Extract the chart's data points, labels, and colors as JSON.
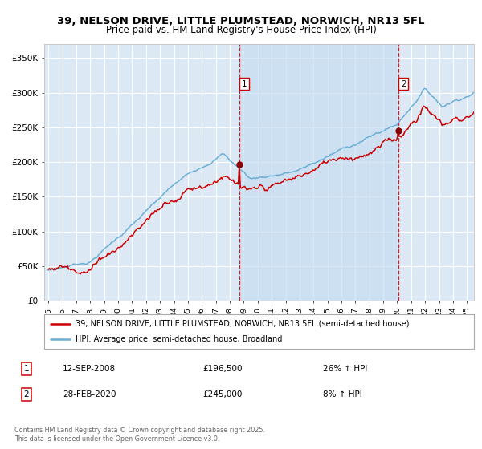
{
  "title_line1": "39, NELSON DRIVE, LITTLE PLUMSTEAD, NORWICH, NR13 5FL",
  "title_line2": "Price paid vs. HM Land Registry's House Price Index (HPI)",
  "background_color": "#ffffff",
  "plot_bg_color": "#dce9f5",
  "span_color": "#c8ddf0",
  "grid_color": "#ffffff",
  "sale1_date_label": "12-SEP-2008",
  "sale1_price_label": "£196,500",
  "sale1_price": 196500,
  "sale1_hpi_change": "26% ↑ HPI",
  "sale2_date_label": "28-FEB-2020",
  "sale2_price_label": "£245,000",
  "sale2_price": 245000,
  "sale2_hpi_change": "8% ↑ HPI",
  "legend_line1": "39, NELSON DRIVE, LITTLE PLUMSTEAD, NORWICH, NR13 5FL (semi-detached house)",
  "legend_line2": "HPI: Average price, semi-detached house, Broadland",
  "footnote": "Contains HM Land Registry data © Crown copyright and database right 2025.\nThis data is licensed under the Open Government Licence v3.0.",
  "hpi_line_color": "#6baed6",
  "price_line_color": "#cc0000",
  "sale_marker_color": "#8b0000",
  "vline_color": "#cc0000",
  "ylim_min": 0,
  "ylim_max": 370000,
  "ytick_values": [
    0,
    50000,
    100000,
    150000,
    200000,
    250000,
    300000,
    350000
  ],
  "ytick_labels": [
    "£0",
    "£50K",
    "£100K",
    "£150K",
    "£200K",
    "£250K",
    "£300K",
    "£350K"
  ],
  "x_start_year": 1995,
  "x_end_year": 2025,
  "sale1_year": 2008.7,
  "sale2_year": 2020.1
}
